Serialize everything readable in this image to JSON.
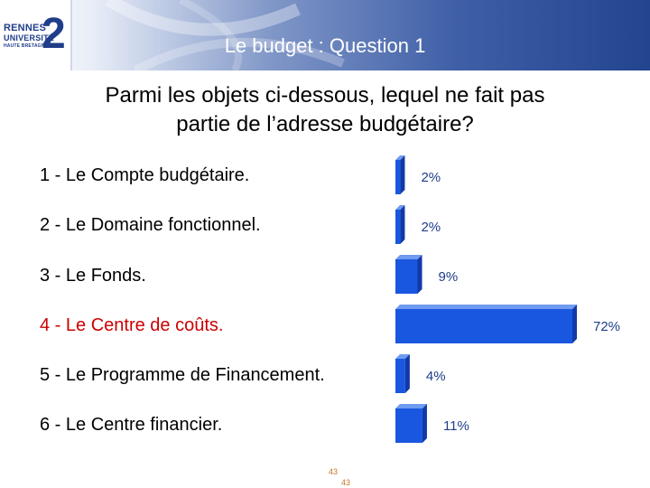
{
  "header": {
    "title": "Le budget : Question 1"
  },
  "logo": {
    "line1": "RENNES",
    "line2": "UNIVERSITÉ",
    "line3": "HAUTE BRETAGNE",
    "number": "2"
  },
  "question": {
    "line1": "Parmi les objets ci-dessous, lequel ne fait pas",
    "line2": "partie de l’adresse budgétaire?"
  },
  "options": [
    {
      "label": "1 - Le Compte budgétaire.",
      "highlight": false
    },
    {
      "label": "2 - Le Domaine fonctionnel.",
      "highlight": false
    },
    {
      "label": "3 - Le Fonds.",
      "highlight": false
    },
    {
      "label": "4 - Le Centre de coûts.",
      "highlight": true
    },
    {
      "label": "5 - Le Programme de Financement.",
      "highlight": false
    },
    {
      "label": "6 - Le Centre financier.",
      "highlight": false
    }
  ],
  "chart_data": {
    "type": "bar",
    "orientation": "horizontal",
    "categories": [
      "1 - Le Compte budgétaire.",
      "2 - Le Domaine fonctionnel.",
      "3 - Le Fonds.",
      "4 - Le Centre de coûts.",
      "5 - Le Programme de Financement.",
      "6 - Le Centre financier."
    ],
    "values": [
      2,
      2,
      9,
      72,
      4,
      11
    ],
    "value_labels": [
      "2%",
      "2%",
      "9%",
      "72%",
      "4%",
      "11%"
    ],
    "unit": "%",
    "xlim": [
      0,
      72
    ],
    "bar_color": "#1a57e0",
    "bar_side_color": "#1239a8",
    "label_color": "#1f3d8a",
    "grid": false
  },
  "footer": {
    "count_a": "43",
    "count_b": "43"
  }
}
